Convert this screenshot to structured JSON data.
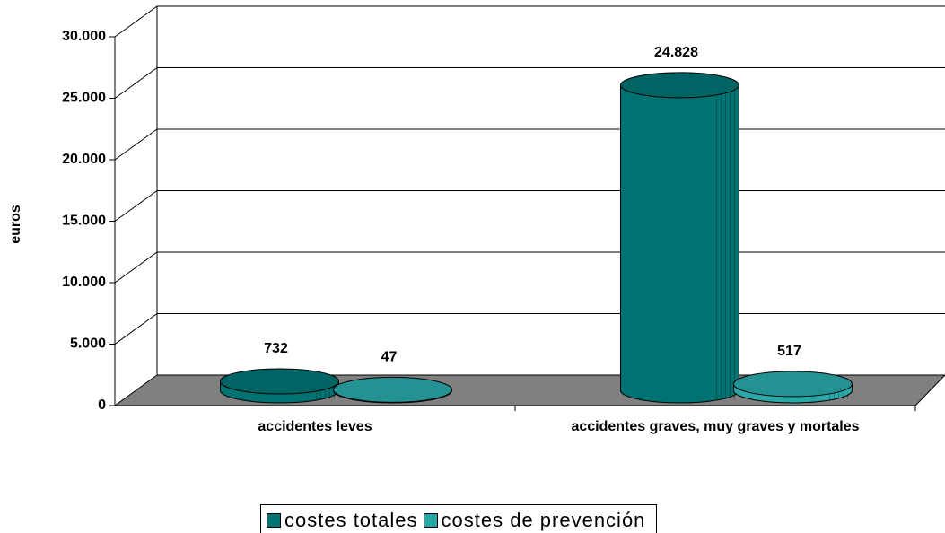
{
  "chart_data": {
    "type": "bar3d",
    "y_label": "euros",
    "categories": [
      "accidentes leves",
      "accidentes graves, muy graves y mortales"
    ],
    "series": [
      {
        "name": "costes totales",
        "color": "#007272",
        "values": [
          732,
          24828
        ],
        "value_labels": [
          "732",
          "24.828"
        ]
      },
      {
        "name": "costes de prevención",
        "color": "#2aa7a7",
        "values": [
          47,
          517
        ],
        "value_labels": [
          "47",
          "517"
        ]
      }
    ],
    "ylim": [
      0,
      30000
    ],
    "yticks": [
      0,
      {
        "value": 5000,
        "label": "5.000"
      },
      {
        "value": 10000,
        "label": "10.000"
      },
      {
        "value": 15000,
        "label": "15.000"
      },
      {
        "value": 20000,
        "label": "20.000"
      },
      {
        "value": 25000,
        "label": "25.000"
      },
      {
        "value": 30000,
        "label": "30.000"
      }
    ],
    "grid": true,
    "legend": "bottom"
  }
}
